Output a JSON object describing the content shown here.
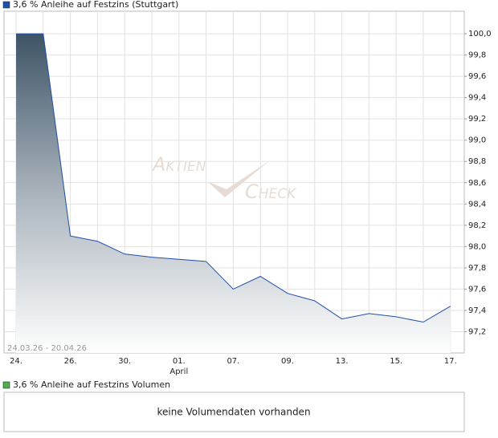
{
  "chart_data": {
    "type": "area",
    "title": "3,6 % Anleihe auf Festzins (Stuttgart)",
    "date_range": "24.03.26 - 20.04.26",
    "watermark": [
      "Aktien",
      "Check"
    ],
    "categories": [
      "24.",
      null,
      "26.",
      null,
      "30.",
      null,
      "01.",
      null,
      "07.",
      null,
      "09.",
      null,
      "13.",
      null,
      "15.",
      null,
      "17."
    ],
    "category_sublabels": [
      null,
      null,
      null,
      null,
      null,
      null,
      "April",
      null,
      null,
      null,
      null,
      null,
      null,
      null,
      null,
      null,
      null
    ],
    "series": [
      {
        "name": "3,6 % Anleihe auf Festzins (Stuttgart)",
        "color": "#1f4fa8",
        "values": [
          100.0,
          100.0,
          98.1,
          98.05,
          97.93,
          97.9,
          97.88,
          97.86,
          97.6,
          97.72,
          97.56,
          97.49,
          97.32,
          97.37,
          97.34,
          97.29,
          97.44
        ]
      }
    ],
    "ylim": [
      97.0,
      100.1
    ],
    "yticks": [
      {
        "value": 97.2,
        "label": "97,2"
      },
      {
        "value": 97.4,
        "label": "97,4"
      },
      {
        "value": 97.6,
        "label": "97,6"
      },
      {
        "value": 97.8,
        "label": "97,8"
      },
      {
        "value": 98.0,
        "label": "98,0"
      },
      {
        "value": 98.2,
        "label": "98,2"
      },
      {
        "value": 98.4,
        "label": "98,4"
      },
      {
        "value": 98.6,
        "label": "98,6"
      },
      {
        "value": 98.8,
        "label": "98,8"
      },
      {
        "value": 99.0,
        "label": "99,0"
      },
      {
        "value": 99.2,
        "label": "99,2"
      },
      {
        "value": 99.4,
        "label": "99,4"
      },
      {
        "value": 99.6,
        "label": "99,6"
      },
      {
        "value": 99.8,
        "label": "99,8"
      },
      {
        "value": 100.0,
        "label": "100,0"
      }
    ],
    "grid": true
  },
  "volume_panel": {
    "title": "3,6 % Anleihe auf Festzins Volumen",
    "color": "#4caf50",
    "message": "keine Volumendaten vorhanden"
  }
}
